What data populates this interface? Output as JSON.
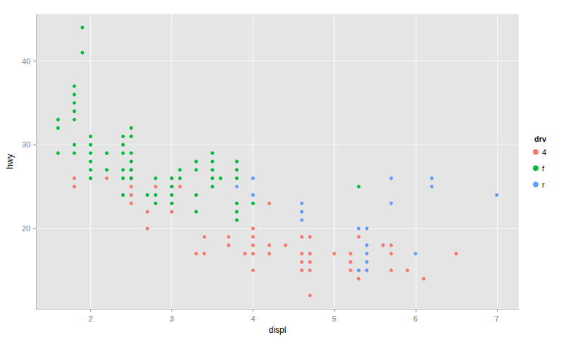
{
  "chart_data": {
    "type": "scatter",
    "x_label": "displ",
    "y_label": "hwy",
    "legend_title": "drv",
    "legend": "right",
    "grid": true,
    "marker": "circle",
    "xlim": [
      1.33,
      7.27
    ],
    "xticks": [
      2,
      3,
      4,
      5,
      6,
      7
    ],
    "ylim": [
      10.4,
      45.6
    ],
    "yticks": [
      20,
      30,
      40
    ],
    "series": [
      {
        "name": "4",
        "color": "#F8766D",
        "x": [
          1.8,
          1.8,
          2.2,
          2.5,
          2.5,
          2.5,
          2.5,
          2.5,
          2.7,
          2.7,
          2.8,
          3.0,
          3.1,
          3.3,
          3.4,
          3.4,
          3.7,
          3.7,
          3.9,
          4.0,
          4.0,
          4.0,
          4.0,
          4.0,
          4.2,
          4.2,
          4.2,
          4.4,
          4.6,
          4.6,
          4.6,
          4.6,
          4.7,
          4.7,
          4.7,
          4.7,
          4.7,
          5.0,
          5.2,
          5.2,
          5.2,
          5.3,
          5.3,
          5.3,
          5.4,
          5.6,
          5.7,
          5.7,
          5.7,
          5.9,
          6.1,
          6.5
        ],
        "values": [
          26,
          25,
          26,
          27,
          26,
          25,
          24,
          23,
          22,
          20,
          25,
          22,
          25,
          17,
          19,
          17,
          19,
          18,
          17,
          20,
          19,
          18,
          17,
          15,
          23,
          18,
          17,
          18,
          19,
          17,
          16,
          15,
          19,
          17,
          16,
          15,
          12,
          17,
          17,
          16,
          15,
          19,
          15,
          14,
          15,
          18,
          18,
          17,
          15,
          15,
          14,
          17
        ]
      },
      {
        "name": "f",
        "color": "#00BA38",
        "x": [
          1.6,
          1.6,
          1.6,
          1.8,
          1.8,
          1.8,
          1.8,
          1.8,
          1.8,
          1.8,
          1.9,
          1.9,
          2.0,
          2.0,
          2.0,
          2.0,
          2.0,
          2.0,
          2.2,
          2.2,
          2.4,
          2.4,
          2.4,
          2.4,
          2.4,
          2.4,
          2.5,
          2.5,
          2.5,
          2.5,
          2.5,
          2.5,
          2.7,
          2.8,
          2.8,
          2.8,
          3.0,
          3.0,
          3.0,
          3.0,
          3.1,
          3.1,
          3.3,
          3.3,
          3.3,
          3.3,
          3.5,
          3.5,
          3.5,
          3.5,
          3.5,
          3.6,
          3.8,
          3.8,
          3.8,
          3.8,
          3.8,
          3.8,
          4.0,
          5.3
        ],
        "values": [
          33,
          32,
          29,
          37,
          36,
          35,
          34,
          33,
          30,
          29,
          44,
          41,
          31,
          30,
          29,
          28,
          27,
          26,
          29,
          27,
          31,
          30,
          29,
          27,
          26,
          24,
          32,
          31,
          29,
          28,
          27,
          26,
          24,
          26,
          24,
          23,
          26,
          25,
          24,
          23,
          27,
          26,
          28,
          27,
          24,
          22,
          29,
          28,
          27,
          26,
          25,
          26,
          28,
          27,
          26,
          23,
          22,
          21,
          23,
          25
        ]
      },
      {
        "name": "r",
        "color": "#619CFF",
        "x": [
          3.8,
          4.0,
          4.0,
          4.6,
          4.6,
          4.6,
          5.3,
          5.3,
          5.4,
          5.4,
          5.4,
          5.4,
          5.4,
          5.7,
          5.7,
          6.0,
          6.2,
          6.2,
          7.0
        ],
        "values": [
          25,
          26,
          24,
          23,
          22,
          21,
          20,
          15,
          20,
          18,
          17,
          16,
          15,
          26,
          23,
          17,
          26,
          25,
          24
        ]
      }
    ]
  }
}
